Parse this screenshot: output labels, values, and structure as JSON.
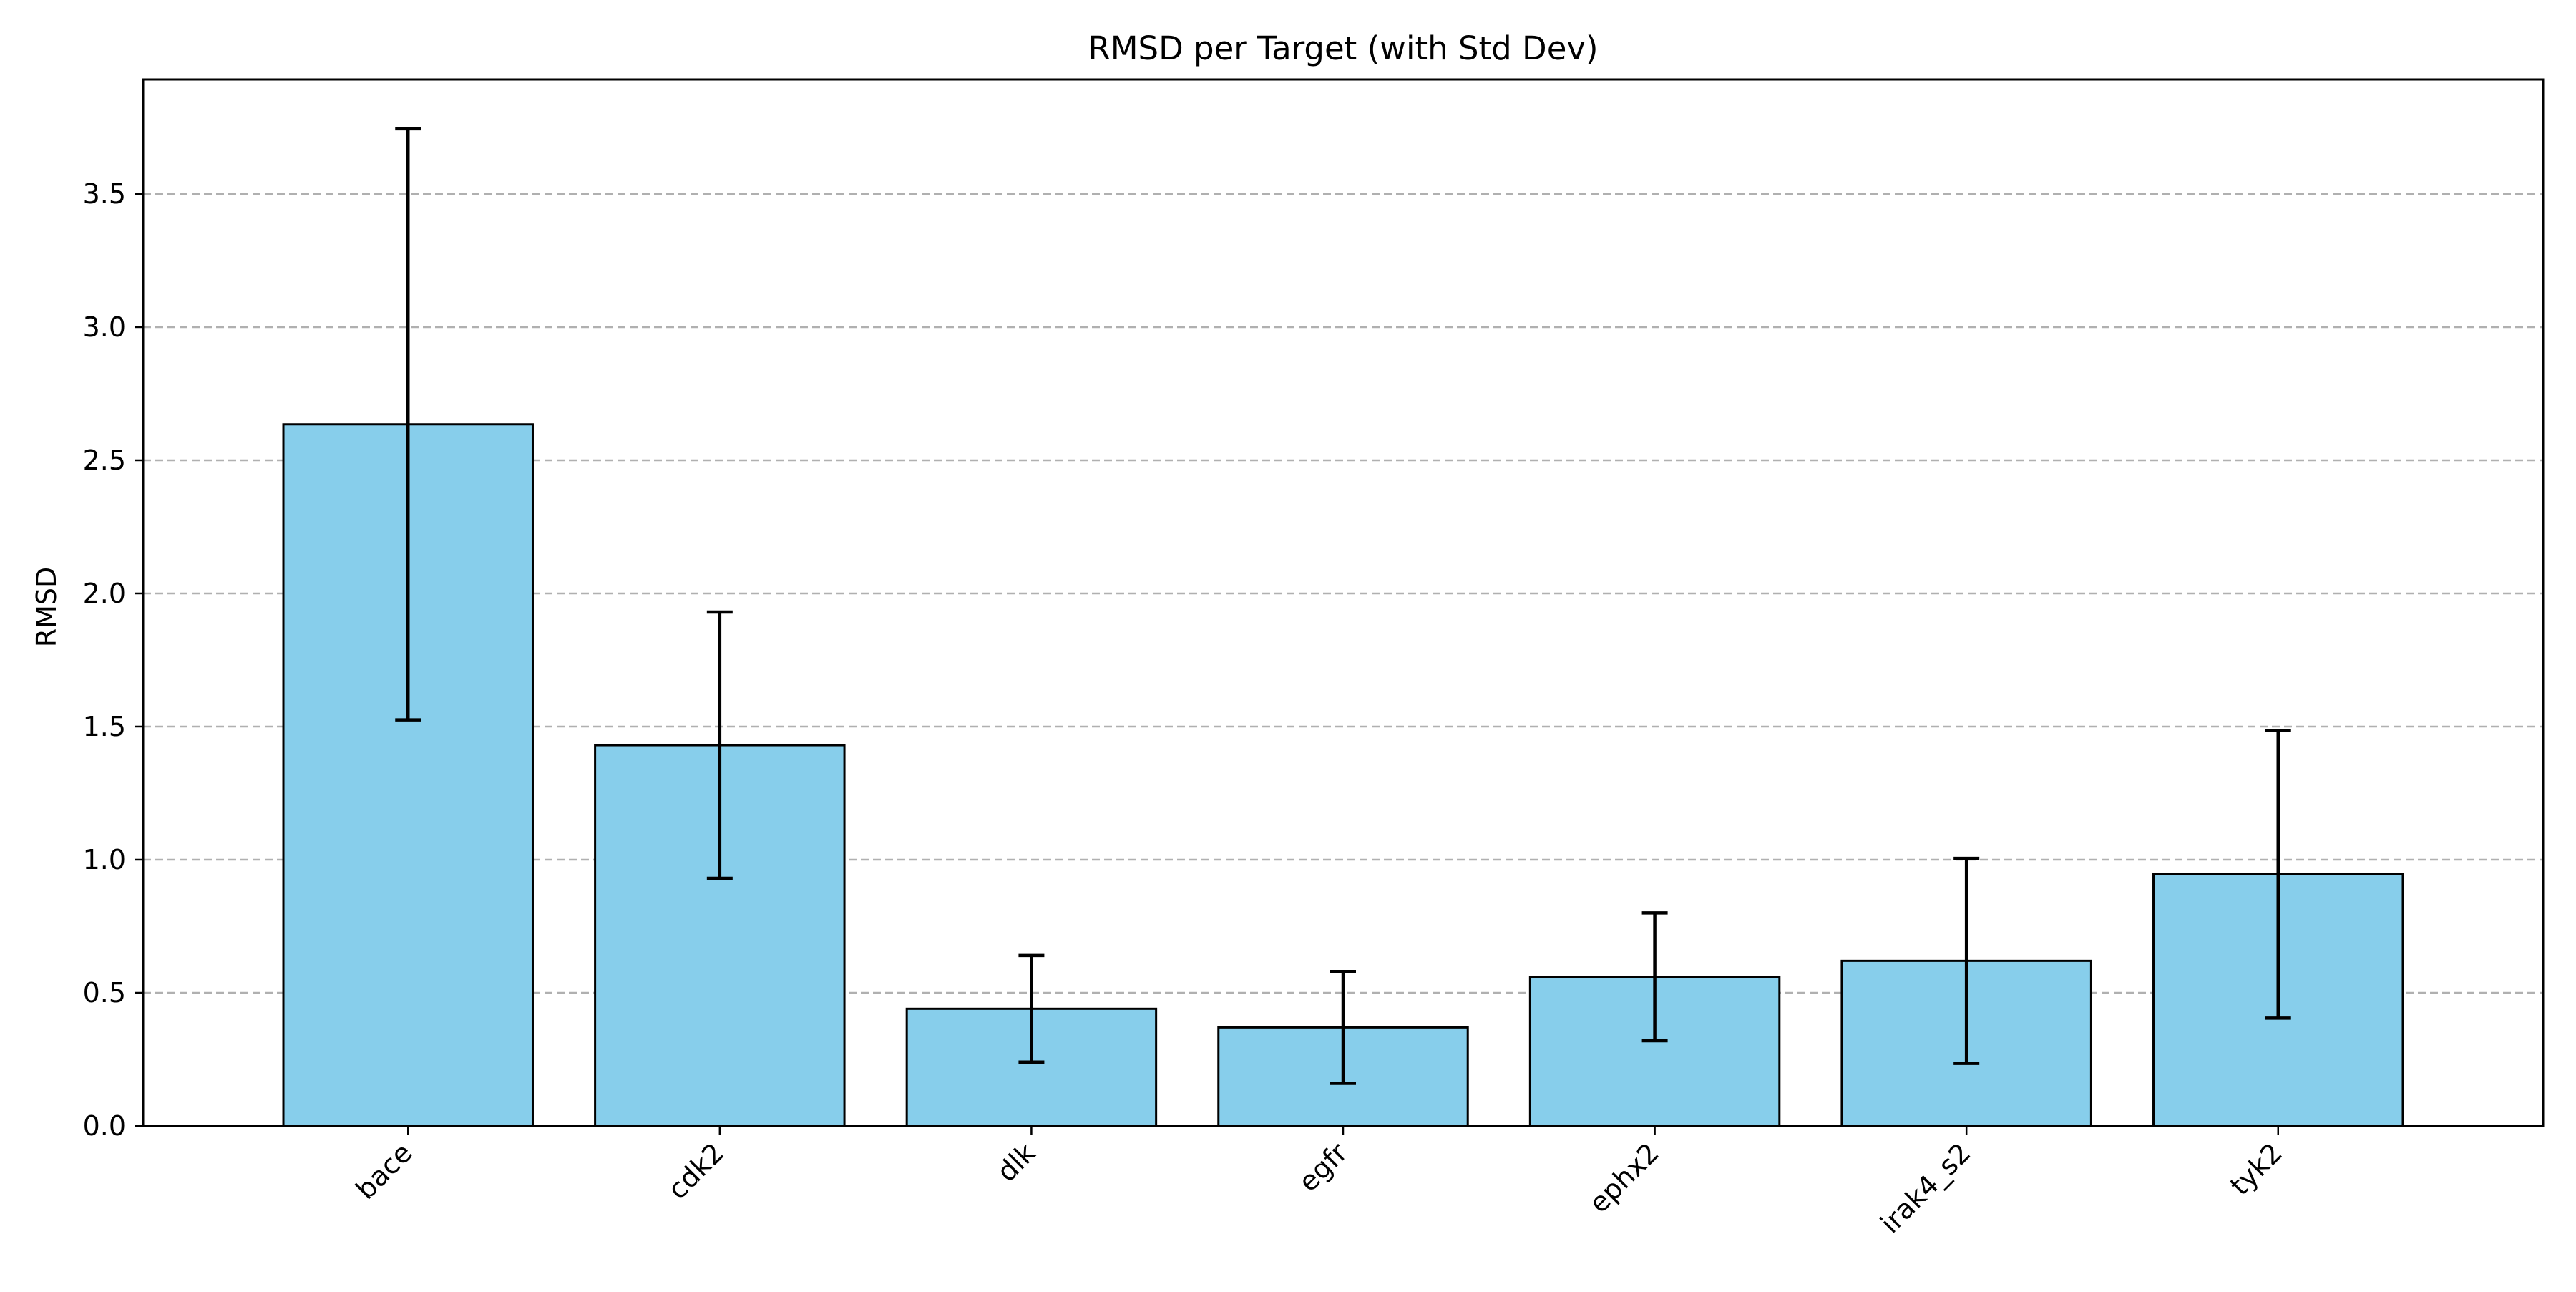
{
  "chart_data": {
    "type": "bar",
    "title": "RMSD per Target (with Std Dev)",
    "xlabel": "",
    "ylabel": "RMSD",
    "categories": [
      "bace",
      "cdk2",
      "dlk",
      "egfr",
      "ephx2",
      "irak4_s2",
      "tyk2"
    ],
    "values": [
      2.635,
      1.43,
      0.44,
      0.37,
      0.56,
      0.62,
      0.945
    ],
    "errors": [
      1.11,
      0.5,
      0.2,
      0.21,
      0.24,
      0.385,
      0.54
    ],
    "ylim": [
      0,
      3.93
    ],
    "yticks": [
      "0.0",
      "0.5",
      "1.0",
      "1.5",
      "2.0",
      "2.5",
      "3.0",
      "3.5"
    ],
    "grid": "horizontal dashed",
    "bar_color": "#87CEEB",
    "edge_color": "#000000",
    "grid_color": "#b0b0b0"
  }
}
